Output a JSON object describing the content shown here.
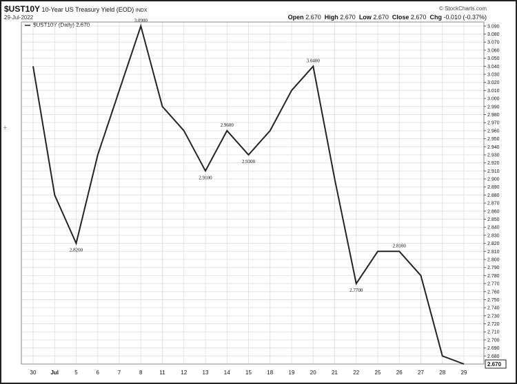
{
  "header": {
    "symbol": "$UST10Y",
    "description": "10-Year US Treasury Yield (EOD)",
    "exchange": "INDX",
    "date": "29-Jul-2022",
    "credit": "© StockCharts.com",
    "open_label": "Open",
    "open_value": "2.670",
    "high_label": "High",
    "high_value": "2.670",
    "low_label": "Low",
    "low_value": "2.670",
    "close_label": "Close",
    "close_value": "2.670",
    "chg_label": "Chg",
    "chg_value": "-0.010 (-0.37%)"
  },
  "legend": {
    "text": "$UST10Y (Daily) 2.670"
  },
  "side": {
    "minus": "−",
    "plus": "+"
  },
  "colors": {
    "line": "#222222",
    "grid": "#e3e3e3",
    "frame": "#222222"
  },
  "chart_data": {
    "type": "line",
    "title": "$UST10Y 10-Year US Treasury Yield (EOD) INDX",
    "subtitle": "29-Jul-2022",
    "categories": [
      "30",
      "Jul",
      "5",
      "6",
      "7",
      "8",
      "11",
      "12",
      "13",
      "14",
      "15",
      "18",
      "19",
      "20",
      "21",
      "22",
      "25",
      "26",
      "27",
      "28",
      "29"
    ],
    "series": [
      {
        "name": "$UST10Y (Daily) 2.670",
        "values": [
          3.04,
          2.88,
          2.82,
          2.93,
          3.01,
          3.09,
          2.99,
          2.96,
          2.91,
          2.96,
          2.93,
          2.96,
          3.01,
          3.04,
          2.9,
          2.77,
          2.81,
          2.81,
          2.78,
          2.68,
          2.67
        ]
      }
    ],
    "annotations": [
      {
        "index": 2,
        "text": "2.8200",
        "position": "below"
      },
      {
        "index": 5,
        "text": "3.0900",
        "position": "above"
      },
      {
        "index": 8,
        "text": "2.9100",
        "position": "below"
      },
      {
        "index": 9,
        "text": "2.9600",
        "position": "above"
      },
      {
        "index": 10,
        "text": "2.9300",
        "position": "below"
      },
      {
        "index": 13,
        "text": "3.0400",
        "position": "above"
      },
      {
        "index": 15,
        "text": "2.7700",
        "position": "below"
      },
      {
        "index": 17,
        "text": "2.8100",
        "position": "above"
      }
    ],
    "last_value_label": "2.670",
    "y_ticks": [
      "2.680",
      "2.690",
      "2.700",
      "2.710",
      "2.720",
      "2.730",
      "2.740",
      "2.750",
      "2.760",
      "2.770",
      "2.780",
      "2.790",
      "2.800",
      "2.810",
      "2.820",
      "2.830",
      "2.840",
      "2.850",
      "2.860",
      "2.870",
      "2.880",
      "2.890",
      "2.900",
      "2.910",
      "2.920",
      "2.930",
      "2.940",
      "2.950",
      "2.960",
      "2.970",
      "2.980",
      "2.990",
      "3.000",
      "3.010",
      "3.020",
      "3.030",
      "3.040",
      "3.050",
      "3.060",
      "3.070",
      "3.080",
      "3.090"
    ],
    "ylim": [
      2.67,
      3.095
    ],
    "yaxis_side": "right",
    "grid": true,
    "legend_position": "top-left"
  }
}
